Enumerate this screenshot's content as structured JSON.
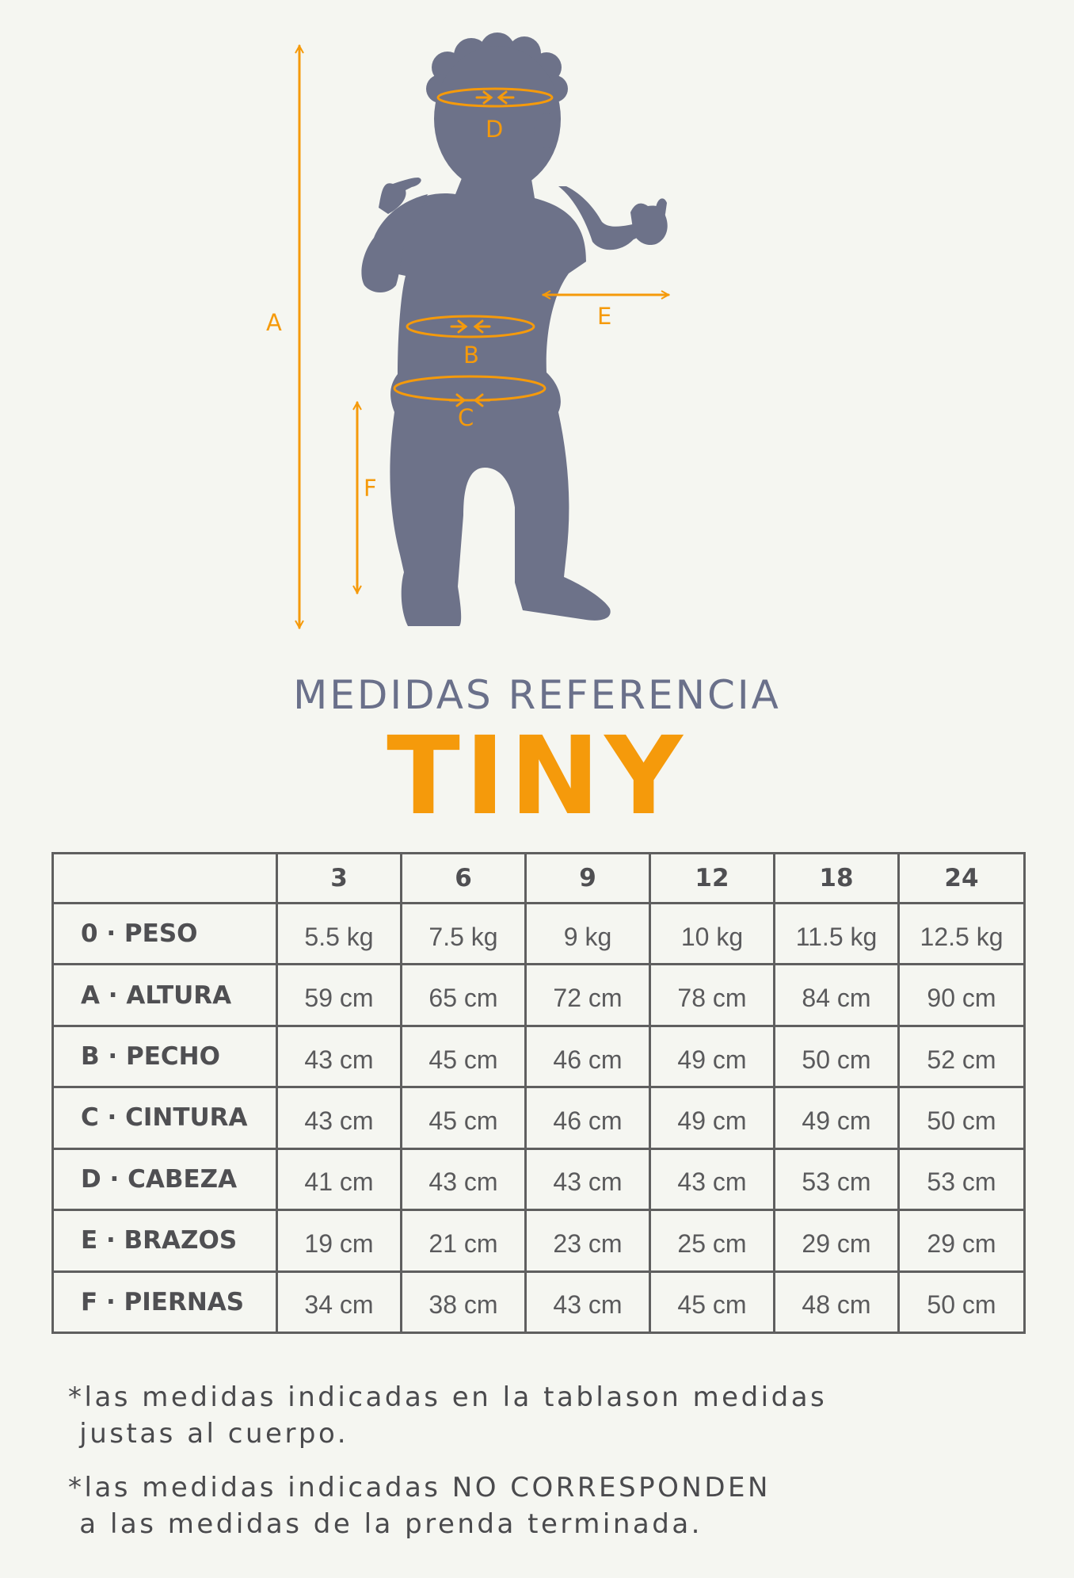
{
  "figure": {
    "labels": {
      "a": "A",
      "b": "B",
      "c": "C",
      "d": "D",
      "e": "E",
      "f": "F"
    },
    "colors": {
      "silhouette": "#6d7289",
      "measure": "#f59a0b"
    }
  },
  "header": {
    "subtitle": "MEDIDAS REFERENCIA",
    "title": "TINY"
  },
  "table": {
    "columns": [
      "",
      "3",
      "6",
      "9",
      "12",
      "18",
      "24"
    ],
    "rows": [
      {
        "label": "0 · PESO",
        "values": [
          "5.5 kg",
          "7.5 kg",
          "9 kg",
          "10 kg",
          "11.5 kg",
          "12.5 kg"
        ]
      },
      {
        "label": "A · ALTURA",
        "values": [
          "59 cm",
          "65 cm",
          "72 cm",
          "78 cm",
          "84 cm",
          "90 cm"
        ]
      },
      {
        "label": "B · PECHO",
        "values": [
          "43 cm",
          "45 cm",
          "46 cm",
          "49 cm",
          "50 cm",
          "52 cm"
        ]
      },
      {
        "label": "C · CINTURA",
        "values": [
          "43 cm",
          "45 cm",
          "46 cm",
          "49 cm",
          "49 cm",
          "50 cm"
        ]
      },
      {
        "label": "D · CABEZA",
        "values": [
          "41 cm",
          "43 cm",
          "43 cm",
          "43 cm",
          "53 cm",
          "53 cm"
        ]
      },
      {
        "label": "E · BRAZOS",
        "values": [
          "19 cm",
          "21 cm",
          "23 cm",
          "25 cm",
          "29 cm",
          "29 cm"
        ]
      },
      {
        "label": "F · PIERNAS",
        "values": [
          "34 cm",
          "38 cm",
          "43 cm",
          "45 cm",
          "48 cm",
          "50 cm"
        ]
      }
    ]
  },
  "notes": [
    "*las medidas indicadas en la tablason medidas\n justas al cuerpo.",
    "*las medidas indicadas NO CORRESPONDEN\n a las medidas de la prenda terminada."
  ]
}
